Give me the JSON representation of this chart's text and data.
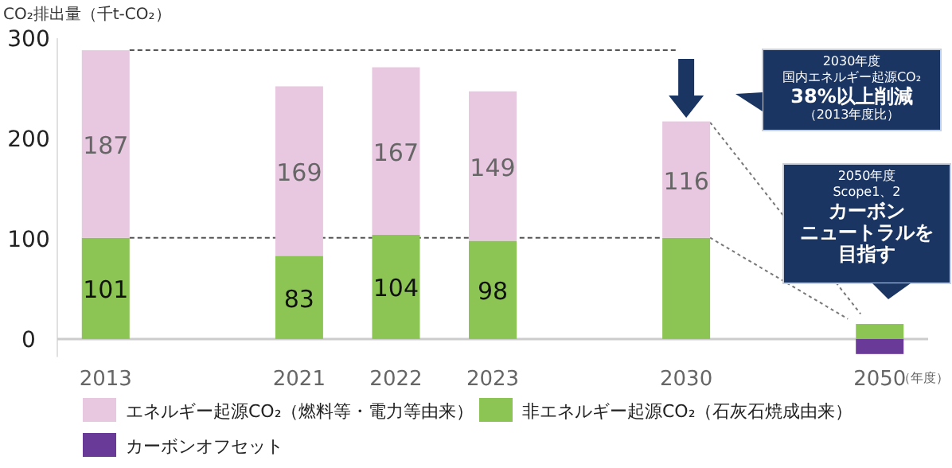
{
  "chart_data": {
    "type": "bar",
    "stacked": true,
    "ylabel": "CO₂排出量（千t-CO₂）",
    "xlabel": "（年度）",
    "categories": [
      "2013",
      null,
      "2021",
      "2022",
      "2023",
      null,
      "2030",
      null,
      "2050"
    ],
    "series": [
      {
        "name": "非エネルギー起源CO₂（石灰石焼成由来）",
        "color": "#8cc553",
        "values": [
          101,
          null,
          83,
          104,
          98,
          null,
          101,
          null,
          15
        ],
        "value_labels": [
          "101",
          null,
          "83",
          "104",
          "98",
          null,
          null,
          null,
          null
        ]
      },
      {
        "name": "エネルギー起源CO₂（燃料等・電力等由来）",
        "color": "#e8c8e0",
        "values": [
          187,
          null,
          169,
          167,
          149,
          null,
          116,
          null,
          null
        ],
        "value_labels": [
          "187",
          null,
          "169",
          "167",
          "149",
          null,
          "116",
          null,
          null
        ]
      },
      {
        "name": "カーボンオフセット",
        "color": "#6a3a98",
        "values": [
          null,
          null,
          null,
          null,
          null,
          null,
          null,
          null,
          -15
        ]
      }
    ],
    "ylim": [
      -18,
      300
    ],
    "yticks": [
      0,
      100,
      200,
      300
    ],
    "grid": false,
    "legend": "bottom",
    "ref_lines": [
      {
        "axis": "y",
        "value": 288,
        "line_style": "dashed",
        "color": "#555555"
      },
      {
        "axis": "y",
        "value": 101,
        "line_style": "dashed",
        "color": "#555555"
      }
    ],
    "annotations": [
      "2030年度",
      "国内エネルギー起源CO₂",
      "38%以上削減",
      "（2013年度比）",
      "2050年度",
      "Scope1、2",
      "カーボン",
      "ニュートラルを",
      "目指す"
    ]
  }
}
